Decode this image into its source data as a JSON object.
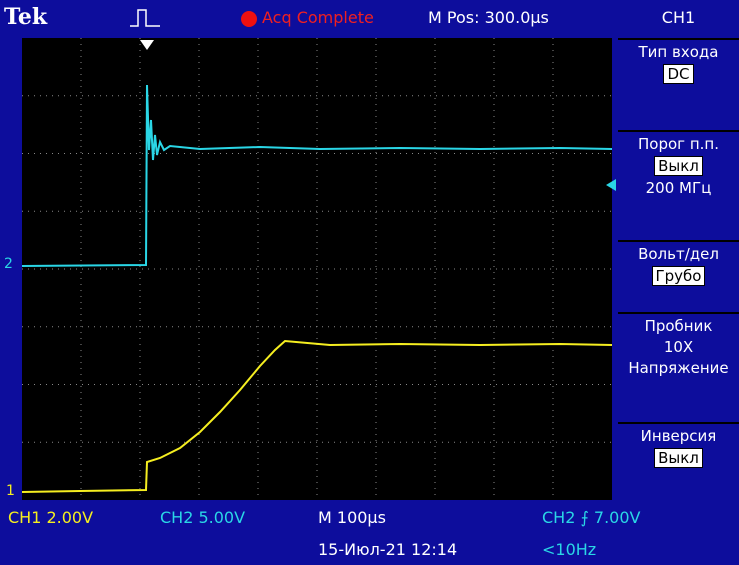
{
  "header": {
    "brand": "Tek",
    "status": "Acq Complete",
    "position": "M Pos: 300.0µs",
    "channel": "CH1"
  },
  "menu": [
    {
      "title": "Тип входа",
      "values": [
        "DC"
      ]
    },
    {
      "title": "Порог п.п.",
      "values": [
        "Выкл",
        "200 МГц"
      ]
    },
    {
      "title": "Вольт/дел",
      "values": [
        "Грубо"
      ]
    },
    {
      "title": "Пробник",
      "values": [
        "10X",
        "Напряжение"
      ]
    },
    {
      "title": "Инверсия",
      "values": [
        "Выкл"
      ]
    }
  ],
  "markers": {
    "ch2": "2",
    "ch1": "1"
  },
  "footer": {
    "ch1": "CH1  2.00V",
    "ch2": "CH2  5.00V",
    "timebase": "M 100µs",
    "trigger": "CH2 ⨍ 7.00V",
    "datetime": "15-Июл-21 12:14",
    "frequency": "<10Hz"
  }
}
